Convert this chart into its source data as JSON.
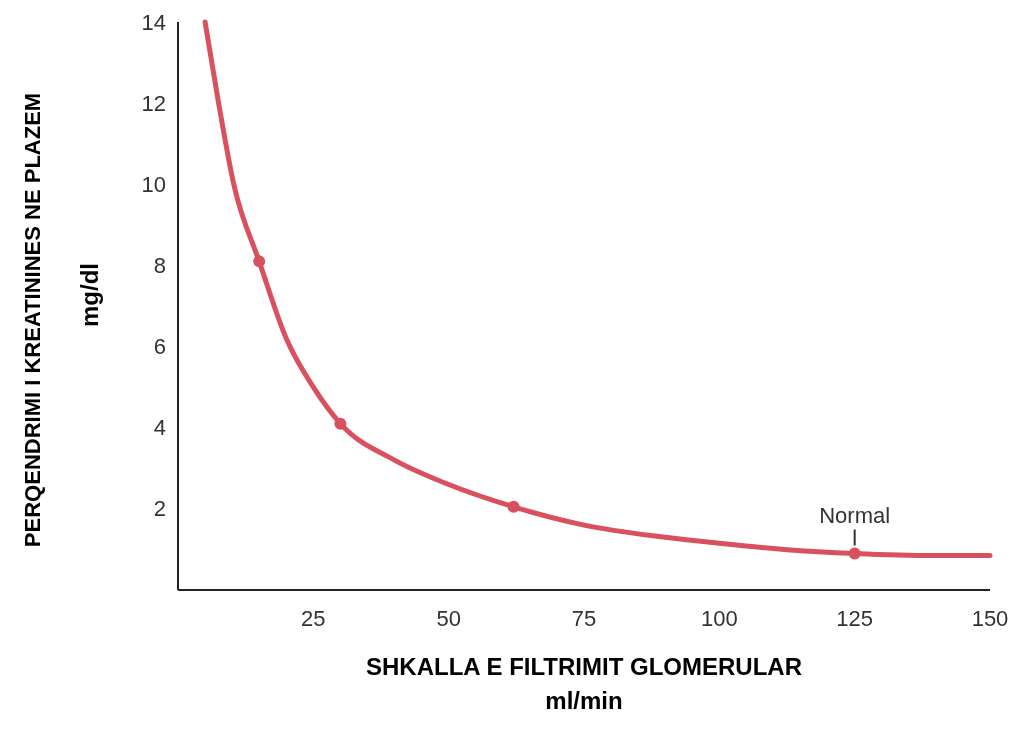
{
  "chart_data": {
    "type": "line",
    "xlabel": "SHKALLA E FILTRIMIT GLOMERULAR\nml/min",
    "ylabel": "PERQENDRIMI I KREATININES NE PLAZEM\nmg/dl",
    "xlim": [
      0,
      150
    ],
    "xticks": [
      25,
      50,
      75,
      100,
      125,
      150
    ],
    "ylim": [
      0,
      14
    ],
    "yticks": [
      2,
      4,
      6,
      8,
      10,
      12,
      14
    ],
    "grid": false,
    "line_style": "solid",
    "series": [
      {
        "marker": "none",
        "color": "#d9505e",
        "x": [
          5,
          7.5,
          10.3,
          15,
          20,
          25,
          30,
          40,
          50,
          62,
          75,
          90,
          100,
          112,
          125,
          140,
          150
        ],
        "values": [
          14,
          12,
          10,
          8.1,
          6.2,
          5,
          4.1,
          3.2,
          2.6,
          2.05,
          1.6,
          1.3,
          1.15,
          1.0,
          0.9,
          0.85,
          0.85
        ]
      },
      {
        "type": "scatter",
        "marker": "circle",
        "color": "#d9505e",
        "x": [
          15,
          30,
          62,
          125
        ],
        "values": [
          8.1,
          4.1,
          2.05,
          0.9
        ]
      }
    ],
    "annotations": [
      {
        "text": "Normal",
        "x": 125,
        "y": 0.9
      }
    ]
  }
}
